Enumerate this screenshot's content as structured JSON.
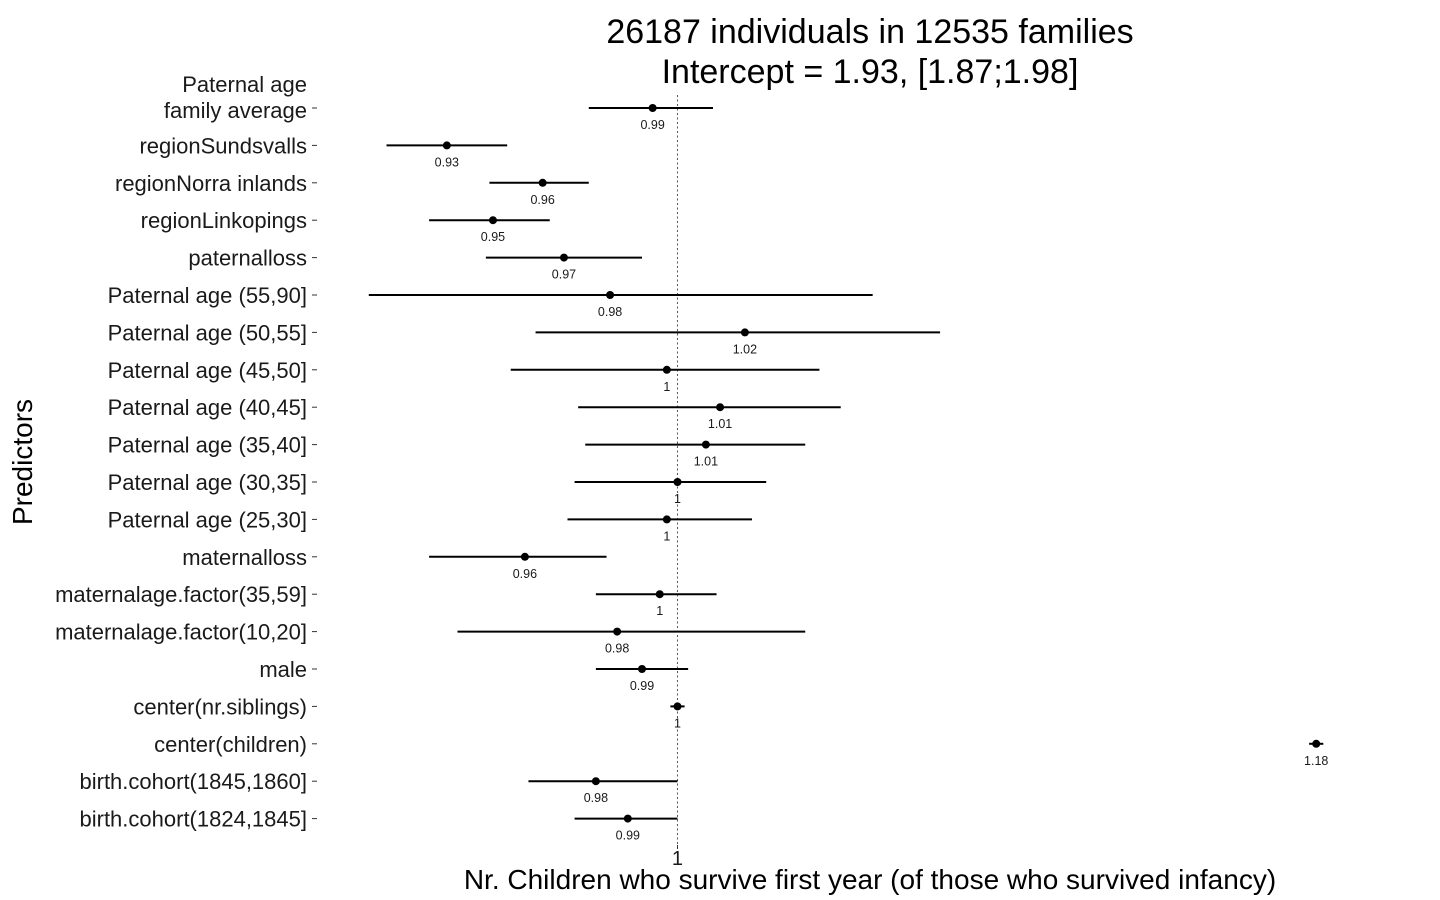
{
  "chart_data": {
    "type": "forest",
    "title": [
      "26187 individuals in 12535 families",
      "Intercept = 1.93, [1.87;1.98]"
    ],
    "xlabel": "Nr. Children who survive first year (of those who survived infancy)",
    "ylabel": "Predictors",
    "x_ticks": [
      {
        "value": 1.0,
        "label": "1"
      }
    ],
    "reference_line": 1.0,
    "xlim": [
      0.9125,
      1.196
    ],
    "grid": false,
    "predictors": [
      {
        "label": [
          "Paternal age",
          "family average"
        ],
        "estimate": 0.993,
        "lower": 0.975,
        "upper": 1.01,
        "value_label": "0.99"
      },
      {
        "label": [
          "regionSundsvalls"
        ],
        "estimate": 0.935,
        "lower": 0.918,
        "upper": 0.952,
        "value_label": "0.93"
      },
      {
        "label": [
          "regionNorra inlands"
        ],
        "estimate": 0.962,
        "lower": 0.947,
        "upper": 0.975,
        "value_label": "0.96"
      },
      {
        "label": [
          "regionLinkopings"
        ],
        "estimate": 0.948,
        "lower": 0.93,
        "upper": 0.964,
        "value_label": "0.95"
      },
      {
        "label": [
          "paternalloss"
        ],
        "estimate": 0.968,
        "lower": 0.946,
        "upper": 0.99,
        "value_label": "0.97"
      },
      {
        "label": [
          "Paternal age (55,90]"
        ],
        "estimate": 0.981,
        "lower": 0.913,
        "upper": 1.055,
        "value_label": "0.98"
      },
      {
        "label": [
          "Paternal age (50,55]"
        ],
        "estimate": 1.019,
        "lower": 0.96,
        "upper": 1.074,
        "value_label": "1.02"
      },
      {
        "label": [
          "Paternal age (45,50]"
        ],
        "estimate": 0.997,
        "lower": 0.953,
        "upper": 1.04,
        "value_label": "1"
      },
      {
        "label": [
          "Paternal age (40,45]"
        ],
        "estimate": 1.012,
        "lower": 0.972,
        "upper": 1.046,
        "value_label": "1.01"
      },
      {
        "label": [
          "Paternal age (35,40]"
        ],
        "estimate": 1.008,
        "lower": 0.974,
        "upper": 1.036,
        "value_label": "1.01"
      },
      {
        "label": [
          "Paternal age (30,35]"
        ],
        "estimate": 1.0,
        "lower": 0.971,
        "upper": 1.025,
        "value_label": "1"
      },
      {
        "label": [
          "Paternal age (25,30]"
        ],
        "estimate": 0.997,
        "lower": 0.969,
        "upper": 1.021,
        "value_label": "1"
      },
      {
        "label": [
          "maternalloss"
        ],
        "estimate": 0.957,
        "lower": 0.93,
        "upper": 0.98,
        "value_label": "0.96"
      },
      {
        "label": [
          "maternalage.factor(35,59]"
        ],
        "estimate": 0.995,
        "lower": 0.977,
        "upper": 1.011,
        "value_label": "1"
      },
      {
        "label": [
          "maternalage.factor(10,20]"
        ],
        "estimate": 0.983,
        "lower": 0.938,
        "upper": 1.036,
        "value_label": "0.98"
      },
      {
        "label": [
          "male"
        ],
        "estimate": 0.99,
        "lower": 0.977,
        "upper": 1.003,
        "value_label": "0.99"
      },
      {
        "label": [
          "center(nr.siblings)"
        ],
        "estimate": 1.0,
        "lower": 0.998,
        "upper": 1.002,
        "value_label": "1"
      },
      {
        "label": [
          "center(children)"
        ],
        "estimate": 1.18,
        "lower": 1.178,
        "upper": 1.182,
        "value_label": "1.18"
      },
      {
        "label": [
          "birth.cohort(1845,1860]"
        ],
        "estimate": 0.977,
        "lower": 0.958,
        "upper": 1.0,
        "value_label": "0.98"
      },
      {
        "label": [
          "birth.cohort(1824,1845]"
        ],
        "estimate": 0.986,
        "lower": 0.971,
        "upper": 1.0,
        "value_label": "0.99"
      }
    ]
  }
}
